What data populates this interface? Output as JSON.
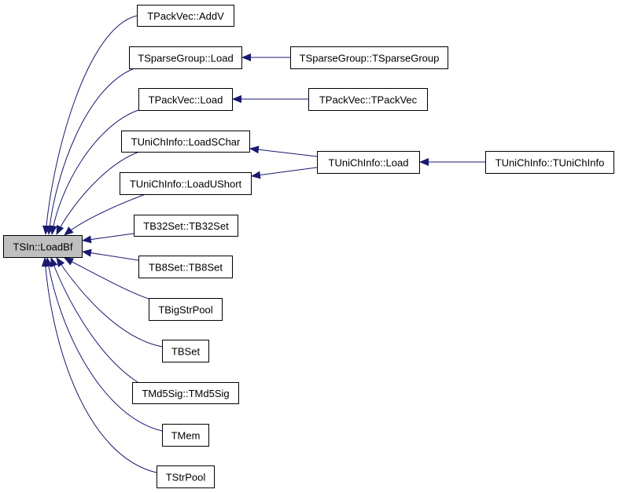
{
  "edge_color": "#191970",
  "root_fill": "#bfbfbf",
  "nodes": {
    "root": "TSIn::LoadBf",
    "addv": "TPackVec::AddV",
    "sgload": "TSparseGroup::Load",
    "pvload": "TPackVec::Load",
    "schar": "TUniChInfo::LoadSChar",
    "ushort": "TUniChInfo::LoadUShort",
    "b32": "TB32Set::TB32Set",
    "b8": "TB8Set::TB8Set",
    "bigstr": "TBigStrPool",
    "bset": "TBSet",
    "md5": "TMd5Sig::TMd5Sig",
    "mem": "TMem",
    "strpool": "TStrPool",
    "sgctor": "TSparseGroup::TSparseGroup",
    "pvctor": "TPackVec::TPackVec",
    "ucload": "TUniChInfo::Load",
    "ucctor": "TUniChInfo::TUniChInfo"
  },
  "edges": [
    [
      "addv",
      "root"
    ],
    [
      "sgload",
      "root"
    ],
    [
      "pvload",
      "root"
    ],
    [
      "schar",
      "root"
    ],
    [
      "ushort",
      "root"
    ],
    [
      "b32",
      "root"
    ],
    [
      "b8",
      "root"
    ],
    [
      "bigstr",
      "root"
    ],
    [
      "bset",
      "root"
    ],
    [
      "md5",
      "root"
    ],
    [
      "mem",
      "root"
    ],
    [
      "strpool",
      "root"
    ],
    [
      "sgctor",
      "sgload"
    ],
    [
      "pvctor",
      "pvload"
    ],
    [
      "ucload",
      "schar"
    ],
    [
      "ucload",
      "ushort"
    ],
    [
      "ucctor",
      "ucload"
    ]
  ]
}
